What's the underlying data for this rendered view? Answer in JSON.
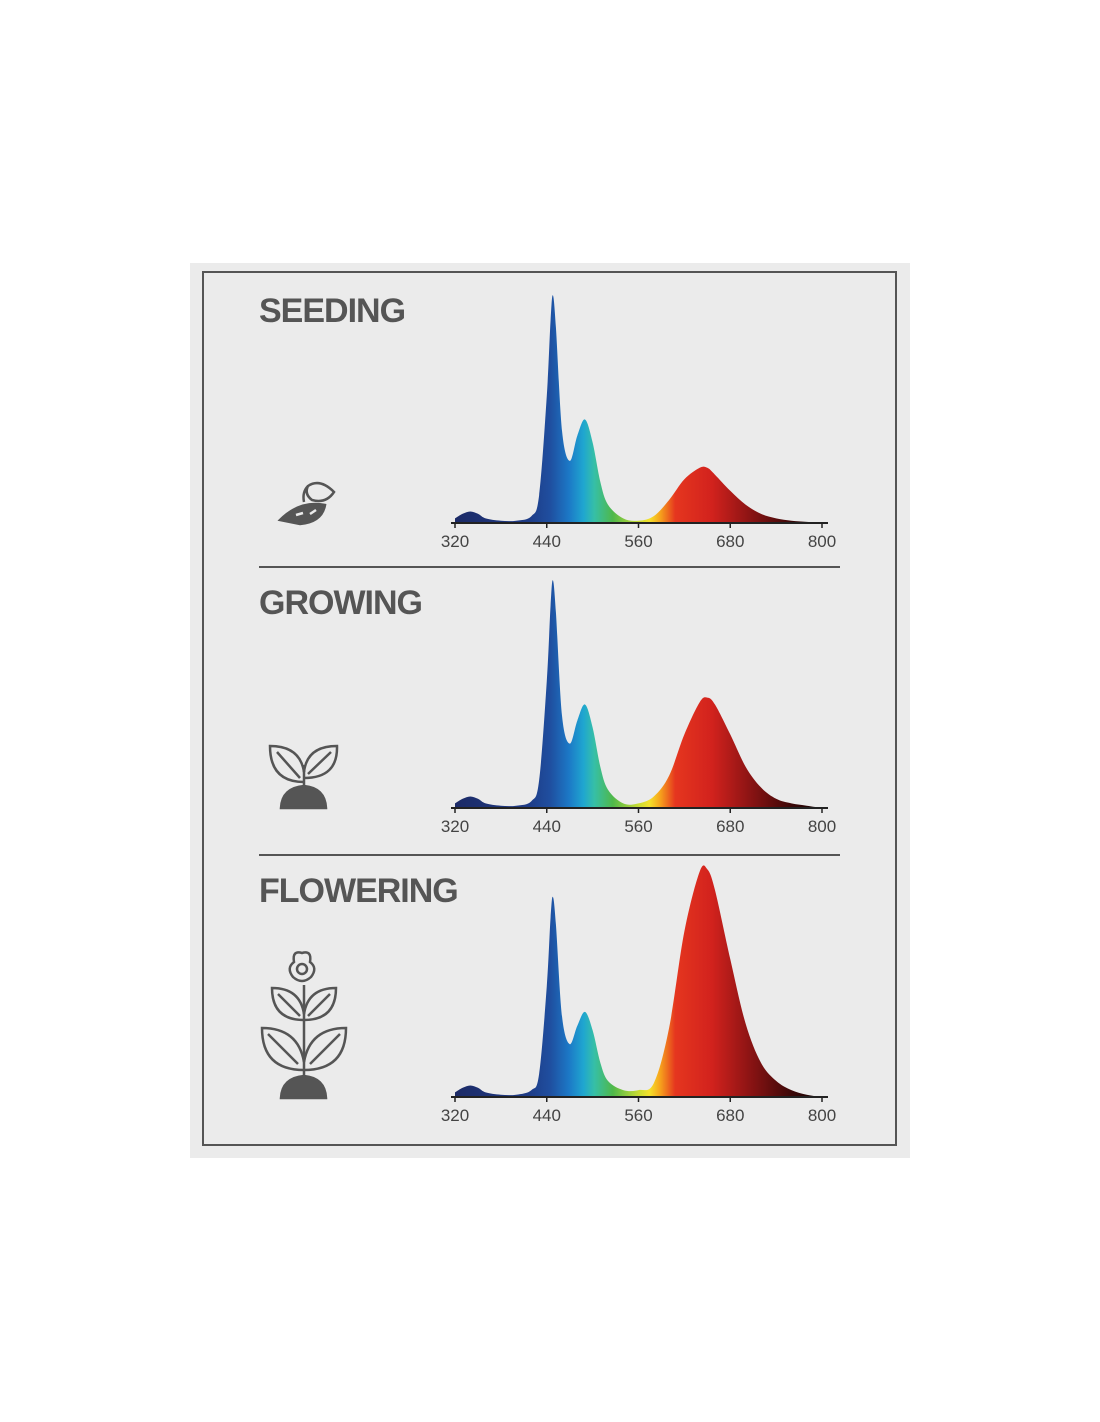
{
  "chart_data": [
    {
      "type": "area",
      "title": "SEEDING",
      "x": [
        320,
        330,
        340,
        350,
        360,
        380,
        400,
        420,
        430,
        440,
        445,
        448,
        452,
        460,
        470,
        480,
        490,
        500,
        510,
        520,
        540,
        560,
        580,
        600,
        620,
        640,
        650,
        660,
        680,
        700,
        720,
        740,
        760,
        780,
        800
      ],
      "values": [
        2,
        4,
        5,
        4,
        2,
        1,
        1,
        3,
        12,
        55,
        88,
        99,
        85,
        40,
        27,
        38,
        45,
        35,
        18,
        8,
        2,
        1,
        3,
        10,
        19,
        24,
        24,
        21,
        14,
        8,
        4,
        2,
        1,
        0.5,
        0
      ],
      "xlim": [
        320,
        800
      ],
      "xticks": [
        320,
        440,
        560,
        680,
        800
      ],
      "ylim": [
        0,
        100
      ]
    },
    {
      "type": "area",
      "title": "GROWING",
      "x": [
        320,
        330,
        340,
        350,
        360,
        380,
        400,
        420,
        430,
        440,
        445,
        448,
        452,
        460,
        470,
        480,
        490,
        500,
        510,
        520,
        540,
        560,
        580,
        600,
        620,
        640,
        650,
        660,
        680,
        700,
        720,
        740,
        760,
        780,
        800
      ],
      "values": [
        2,
        4,
        5,
        4,
        2,
        1,
        1,
        3,
        12,
        55,
        88,
        99,
        85,
        40,
        28,
        38,
        45,
        35,
        18,
        8,
        2,
        2,
        5,
        14,
        32,
        46,
        48,
        45,
        32,
        18,
        9,
        4,
        2,
        1,
        0
      ],
      "xlim": [
        320,
        800
      ],
      "xticks": [
        320,
        440,
        560,
        680,
        800
      ],
      "ylim": [
        0,
        100
      ]
    },
    {
      "type": "area",
      "title": "FLOWERING",
      "x": [
        320,
        330,
        340,
        350,
        360,
        380,
        400,
        420,
        430,
        440,
        445,
        448,
        452,
        460,
        470,
        480,
        490,
        500,
        510,
        520,
        540,
        560,
        580,
        600,
        620,
        640,
        650,
        660,
        680,
        700,
        720,
        740,
        760,
        780,
        800
      ],
      "values": [
        2,
        4,
        5,
        4,
        2,
        1,
        1,
        3,
        10,
        48,
        78,
        87,
        75,
        35,
        23,
        31,
        37,
        29,
        15,
        7,
        3,
        3,
        6,
        30,
        72,
        98,
        99,
        90,
        60,
        32,
        15,
        7,
        3,
        1,
        0
      ],
      "xlim": [
        320,
        800
      ],
      "xticks": [
        320,
        440,
        560,
        680,
        800
      ],
      "ylim": [
        0,
        100
      ]
    }
  ]
}
